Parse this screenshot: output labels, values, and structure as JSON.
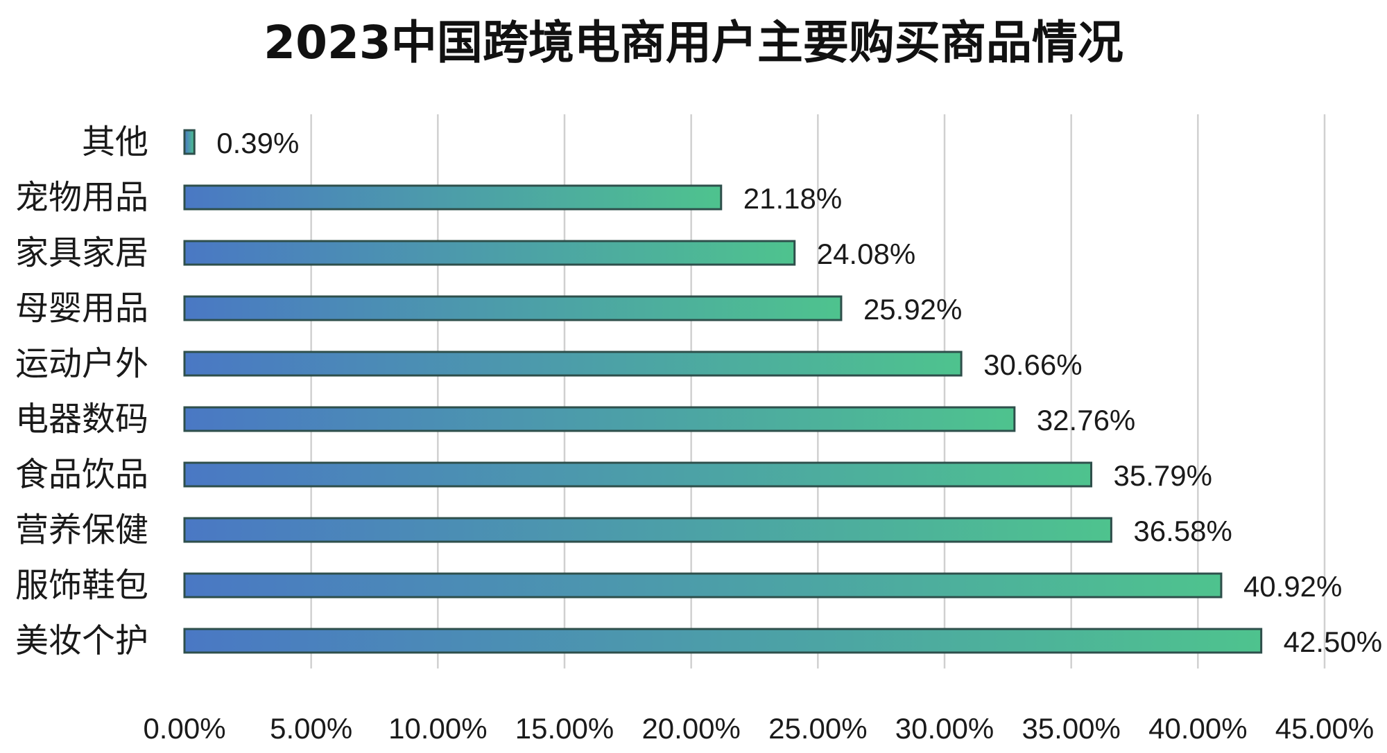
{
  "chart_data": {
    "type": "bar",
    "orientation": "horizontal",
    "title": "2023中国跨境电商用户主要购买商品情况",
    "categories": [
      "美妆个护",
      "服饰鞋包",
      "营养保健",
      "食品饮品",
      "电器数码",
      "运动户外",
      "母婴用品",
      "家具家居",
      "宠物用品",
      "其他"
    ],
    "values": [
      42.5,
      40.92,
      36.58,
      35.79,
      32.76,
      30.66,
      25.92,
      24.08,
      21.18,
      0.39
    ],
    "data_labels": [
      "42.50%",
      "40.92%",
      "36.58%",
      "35.79%",
      "32.76%",
      "30.66%",
      "25.92%",
      "24.08%",
      "21.18%",
      "0.39%"
    ],
    "xlim": [
      0,
      45
    ],
    "x_ticks": [
      "0.00%",
      "5.00%",
      "10.00%",
      "15.00%",
      "20.00%",
      "25.00%",
      "30.00%",
      "35.00%",
      "40.00%",
      "45.00%"
    ],
    "grid": "vertical",
    "legend": "none",
    "colors": {
      "bar_start": "#4a78c4",
      "bar_end": "#4ec38e",
      "bar_outline": "#2e4f4b",
      "gridline": "#d0d0d0"
    }
  }
}
